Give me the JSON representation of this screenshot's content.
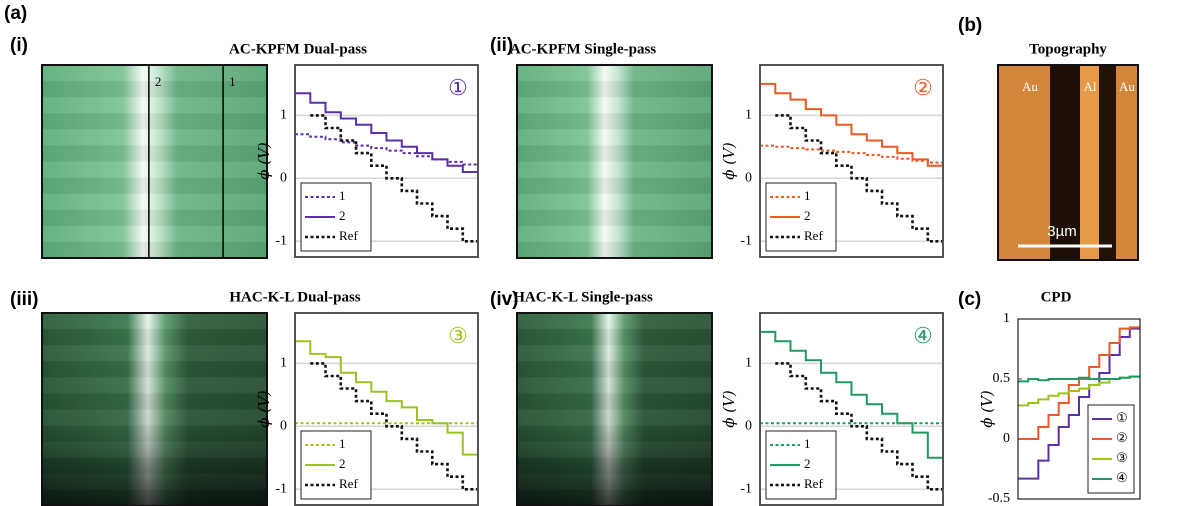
{
  "panels": {
    "a": "(a)",
    "b": {
      "label": "(b)",
      "title": "Topography",
      "regions": [
        "Au",
        "Al",
        "Au"
      ],
      "scale": "3µm"
    },
    "image_markers": [
      "2",
      "1"
    ]
  },
  "chart_data": [
    {
      "type": "line",
      "panel": "(i)",
      "title": "AC-KPFM Dual-pass",
      "ylabel": "ϕ (V)",
      "annotation": "①",
      "legend": "lower left",
      "grid": true,
      "xlim": [
        0,
        12
      ],
      "ylim": [
        -1.25,
        1.8
      ],
      "yticks": [
        -1,
        0,
        1
      ],
      "x": [
        0,
        1,
        1,
        2,
        2,
        3,
        3,
        4,
        4,
        5,
        5,
        6,
        6,
        7,
        7,
        8,
        8,
        9,
        9,
        10,
        10,
        11,
        11,
        12
      ],
      "series": [
        {
          "name": "1",
          "color": "#5b2fa8",
          "dash": "dotted",
          "values": [
            0.7,
            0.7,
            0.66,
            0.66,
            0.62,
            0.62,
            0.57,
            0.57,
            0.52,
            0.52,
            0.48,
            0.48,
            0.44,
            0.44,
            0.4,
            0.4,
            0.35,
            0.35,
            0.3,
            0.3,
            0.26,
            0.26,
            0.22,
            0.22
          ]
        },
        {
          "name": "2",
          "color": "#5b2fa8",
          "dash": "solid",
          "values": [
            1.35,
            1.35,
            1.2,
            1.2,
            1.05,
            1.05,
            0.95,
            0.95,
            0.85,
            0.85,
            0.72,
            0.72,
            0.6,
            0.6,
            0.5,
            0.5,
            0.4,
            0.4,
            0.3,
            0.3,
            0.2,
            0.2,
            0.1,
            0.1
          ]
        },
        {
          "name": "Ref",
          "color": "#111111",
          "dash": "dotted",
          "values": [
            null,
            null,
            1,
            1,
            0.8,
            0.8,
            0.6,
            0.6,
            0.4,
            0.4,
            0.2,
            0.2,
            0,
            0,
            -0.2,
            -0.2,
            -0.4,
            -0.4,
            -0.6,
            -0.6,
            -0.8,
            -0.8,
            -1,
            -1
          ]
        }
      ]
    },
    {
      "type": "line",
      "panel": "(ii)",
      "title": "AC-KPFM Single-pass",
      "ylabel": "ϕ (V)",
      "annotation": "②",
      "legend": "lower left",
      "grid": true,
      "xlim": [
        0,
        12
      ],
      "ylim": [
        -1.25,
        1.8
      ],
      "yticks": [
        -1,
        0,
        1
      ],
      "x": [
        0,
        1,
        1,
        2,
        2,
        3,
        3,
        4,
        4,
        5,
        5,
        6,
        6,
        7,
        7,
        8,
        8,
        9,
        9,
        10,
        10,
        11,
        11,
        12
      ],
      "series": [
        {
          "name": "1",
          "color": "#ec5a24",
          "dash": "dotted",
          "values": [
            0.52,
            0.52,
            0.5,
            0.5,
            0.48,
            0.48,
            0.46,
            0.46,
            0.44,
            0.44,
            0.42,
            0.42,
            0.4,
            0.4,
            0.37,
            0.37,
            0.34,
            0.34,
            0.31,
            0.31,
            0.28,
            0.28,
            0.25,
            0.25
          ]
        },
        {
          "name": "2",
          "color": "#ec5a24",
          "dash": "solid",
          "values": [
            1.5,
            1.5,
            1.35,
            1.35,
            1.25,
            1.25,
            1.1,
            1.1,
            1,
            1,
            0.85,
            0.85,
            0.7,
            0.7,
            0.6,
            0.6,
            0.5,
            0.5,
            0.4,
            0.4,
            0.3,
            0.3,
            0.2,
            0.2
          ]
        },
        {
          "name": "Ref",
          "color": "#111111",
          "dash": "dotted",
          "values": [
            null,
            null,
            1,
            1,
            0.8,
            0.8,
            0.6,
            0.6,
            0.4,
            0.4,
            0.2,
            0.2,
            0,
            0,
            -0.2,
            -0.2,
            -0.4,
            -0.4,
            -0.6,
            -0.6,
            -0.8,
            -0.8,
            -1,
            -1
          ]
        }
      ]
    },
    {
      "type": "line",
      "panel": "(iii)",
      "title": "HAC-K-L Dual-pass",
      "ylabel": "ϕ (V)",
      "annotation": "③",
      "legend": "lower left",
      "grid": true,
      "xlim": [
        0,
        12
      ],
      "ylim": [
        -1.25,
        1.8
      ],
      "yticks": [
        -1,
        0,
        1
      ],
      "x": [
        0,
        1,
        1,
        2,
        2,
        3,
        3,
        4,
        4,
        5,
        5,
        6,
        6,
        7,
        7,
        8,
        8,
        9,
        9,
        10,
        10,
        11,
        11,
        12
      ],
      "series": [
        {
          "name": "1",
          "color": "#9cc41e",
          "dash": "dotted",
          "values": [
            0.05,
            0.05,
            0.05,
            0.05,
            0.05,
            0.05,
            0.05,
            0.05,
            0.05,
            0.05,
            0.05,
            0.05,
            0.05,
            0.05,
            0.05,
            0.05,
            0.05,
            0.05,
            0.05,
            0.05,
            0.05,
            0.05,
            0.05,
            0.05
          ]
        },
        {
          "name": "2",
          "color": "#9cc41e",
          "dash": "solid",
          "values": [
            1.35,
            1.35,
            1.15,
            1.15,
            1.1,
            1.1,
            0.85,
            0.85,
            0.7,
            0.7,
            0.55,
            0.55,
            0.4,
            0.4,
            0.3,
            0.3,
            0.1,
            0.1,
            0.05,
            0.05,
            -0.1,
            -0.1,
            -0.45,
            -0.45
          ]
        },
        {
          "name": "Ref",
          "color": "#111111",
          "dash": "dotted",
          "values": [
            null,
            null,
            1,
            1,
            0.8,
            0.8,
            0.6,
            0.6,
            0.4,
            0.4,
            0.2,
            0.2,
            0,
            0,
            -0.2,
            -0.2,
            -0.4,
            -0.4,
            -0.6,
            -0.6,
            -0.8,
            -0.8,
            -1,
            -1
          ]
        }
      ]
    },
    {
      "type": "line",
      "panel": "(iv)",
      "title": "HAC-K-L Single-pass",
      "ylabel": "ϕ (V)",
      "annotation": "④",
      "legend": "lower left",
      "grid": true,
      "xlim": [
        0,
        12
      ],
      "ylim": [
        -1.25,
        1.8
      ],
      "yticks": [
        -1,
        0,
        1
      ],
      "x": [
        0,
        1,
        1,
        2,
        2,
        3,
        3,
        4,
        4,
        5,
        5,
        6,
        6,
        7,
        7,
        8,
        8,
        9,
        9,
        10,
        10,
        11,
        11,
        12
      ],
      "series": [
        {
          "name": "1",
          "color": "#1e9a62",
          "dash": "dotted",
          "values": [
            0.05,
            0.05,
            0.05,
            0.05,
            0.05,
            0.05,
            0.05,
            0.05,
            0.05,
            0.05,
            0.05,
            0.05,
            0.05,
            0.05,
            0.05,
            0.05,
            0.05,
            0.05,
            0.05,
            0.05,
            0.05,
            0.05,
            0.05,
            0.05
          ]
        },
        {
          "name": "2",
          "color": "#1e9a62",
          "dash": "solid",
          "values": [
            1.5,
            1.5,
            1.35,
            1.35,
            1.2,
            1.2,
            1.05,
            1.05,
            0.85,
            0.85,
            0.7,
            0.7,
            0.5,
            0.5,
            0.35,
            0.35,
            0.2,
            0.2,
            0.05,
            0.05,
            -0.1,
            -0.1,
            -0.5,
            -0.5
          ]
        },
        {
          "name": "Ref",
          "color": "#111111",
          "dash": "dotted",
          "values": [
            null,
            null,
            1,
            1,
            0.8,
            0.8,
            0.6,
            0.6,
            0.4,
            0.4,
            0.2,
            0.2,
            0,
            0,
            -0.2,
            -0.2,
            -0.4,
            -0.4,
            -0.6,
            -0.6,
            -0.8,
            -0.8,
            -1,
            -1
          ]
        }
      ]
    },
    {
      "type": "line",
      "panel": "(c)",
      "title": "CPD",
      "ylabel": "ϕ (V)",
      "legend": "lower right",
      "grid": false,
      "xlim": [
        0,
        12
      ],
      "ylim": [
        -0.5,
        1
      ],
      "yticks": [
        -0.5,
        0,
        0.5,
        1
      ],
      "x": [
        0,
        1,
        1,
        2,
        2,
        3,
        3,
        4,
        4,
        5,
        5,
        6,
        6,
        7,
        7,
        8,
        8,
        9,
        9,
        10,
        10,
        11,
        11,
        12
      ],
      "series": [
        {
          "name": "①",
          "color": "#5b2fa8",
          "dash": "solid",
          "values": [
            -0.33,
            -0.33,
            -0.33,
            -0.33,
            -0.18,
            -0.18,
            -0.05,
            -0.05,
            0.1,
            0.1,
            0.2,
            0.2,
            0.35,
            0.35,
            0.45,
            0.45,
            0.55,
            0.55,
            0.7,
            0.7,
            0.85,
            0.85,
            0.92,
            0.92
          ]
        },
        {
          "name": "②",
          "color": "#ec5a24",
          "dash": "solid",
          "values": [
            0,
            0,
            0,
            0,
            0.1,
            0.1,
            0.2,
            0.2,
            0.3,
            0.3,
            0.45,
            0.45,
            0.5,
            0.5,
            0.6,
            0.6,
            0.7,
            0.7,
            0.8,
            0.8,
            0.92,
            0.92,
            0.93,
            0.93
          ]
        },
        {
          "name": "③",
          "color": "#9cc41e",
          "dash": "solid",
          "values": [
            0.28,
            0.28,
            0.3,
            0.3,
            0.33,
            0.33,
            0.36,
            0.36,
            0.38,
            0.38,
            0.4,
            0.4,
            0.42,
            0.42,
            0.45,
            0.45,
            0.47,
            0.47,
            0.5,
            0.5,
            0.51,
            0.51,
            0.52,
            0.52
          ]
        },
        {
          "name": "④",
          "color": "#1e9a62",
          "dash": "solid",
          "values": [
            0.48,
            0.48,
            0.5,
            0.5,
            0.49,
            0.49,
            0.5,
            0.5,
            0.5,
            0.5,
            0.5,
            0.5,
            0.51,
            0.51,
            0.5,
            0.5,
            0.5,
            0.5,
            0.5,
            0.5,
            0.51,
            0.51,
            0.52,
            0.52
          ]
        }
      ]
    }
  ]
}
